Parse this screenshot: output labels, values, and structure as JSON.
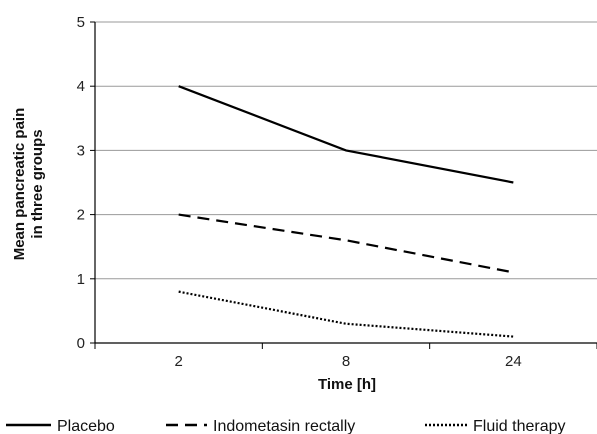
{
  "chart_data": {
    "type": "line",
    "title": "",
    "xlabel": "Time [h]",
    "ylabel_lines": [
      "Mean pancreatic pain",
      "in three groups"
    ],
    "categories": [
      "2",
      "8",
      "24"
    ],
    "ylim": [
      0,
      5
    ],
    "yticks": [
      "0",
      "1",
      "2",
      "3",
      "4",
      "5"
    ],
    "grid": true,
    "legend_position": "bottom",
    "series": [
      {
        "name": "Placebo",
        "values": [
          4.0,
          3.0,
          2.5
        ],
        "style": "solid",
        "color": "#000000"
      },
      {
        "name": "Indometasin rectally",
        "values": [
          2.0,
          1.6,
          1.1
        ],
        "style": "dashed",
        "color": "#000000"
      },
      {
        "name": "Fluid therapy",
        "values": [
          0.8,
          0.3,
          0.1
        ],
        "style": "dotted",
        "color": "#000000"
      }
    ]
  }
}
